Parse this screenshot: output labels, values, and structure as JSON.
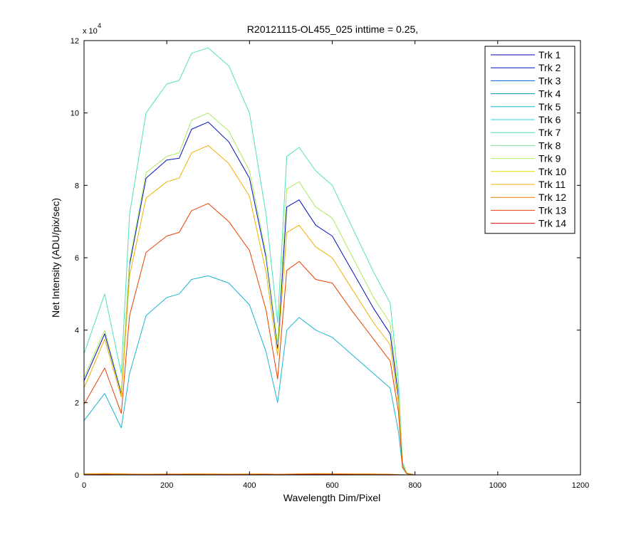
{
  "chart_data": {
    "type": "line",
    "title": "R20121115-OL455_025 inttime = 0.25,",
    "xlabel": "Wavelength Dim/Pixel",
    "ylabel": "Net Intensity (ADU/pix/sec)",
    "y_multiplier_label": "x 10",
    "y_multiplier_exponent": "4",
    "xlim": [
      0,
      1200
    ],
    "ylim": [
      0,
      120000
    ],
    "xticks": [
      0,
      200,
      400,
      600,
      800,
      1000,
      1200
    ],
    "yticks": [
      0,
      20000,
      40000,
      60000,
      80000,
      100000,
      120000
    ],
    "xtick_labels": [
      "0",
      "200",
      "400",
      "600",
      "800",
      "1000",
      "1200"
    ],
    "ytick_labels": [
      "0",
      "2",
      "4",
      "6",
      "8",
      "10",
      "12"
    ],
    "legend_position": "top-right",
    "grid": false,
    "x": [
      0,
      50,
      90,
      110,
      150,
      200,
      230,
      260,
      300,
      350,
      400,
      440,
      468,
      490,
      520,
      560,
      600,
      650,
      700,
      740,
      760,
      770,
      780,
      800,
      1023
    ],
    "series": [
      {
        "name": "Trk 1",
        "color": "#0000AA",
        "values": [
          100,
          150,
          120,
          90,
          60,
          110,
          90,
          130,
          110,
          80,
          100,
          120,
          70,
          100,
          160,
          200,
          180,
          140,
          120,
          80,
          40,
          10,
          0,
          0,
          0
        ]
      },
      {
        "name": "Trk 2",
        "color": "#0010C0",
        "values": [
          26000,
          39000,
          22500,
          58000,
          82000,
          87000,
          87500,
          95500,
          97500,
          92000,
          82000,
          60000,
          35000,
          74000,
          76000,
          69000,
          66000,
          56000,
          46000,
          39000,
          22000,
          3000,
          500,
          0,
          0
        ]
      },
      {
        "name": "Trk 3",
        "color": "#0060D0",
        "values": [
          150,
          200,
          160,
          120,
          100,
          150,
          130,
          160,
          150,
          120,
          140,
          150,
          100,
          130,
          190,
          230,
          210,
          170,
          140,
          100,
          50,
          15,
          0,
          0,
          0
        ]
      },
      {
        "name": "Trk 4",
        "color": "#0090B0",
        "values": [
          120,
          180,
          140,
          100,
          80,
          130,
          110,
          140,
          120,
          100,
          120,
          130,
          90,
          110,
          170,
          210,
          190,
          150,
          130,
          90,
          45,
          12,
          0,
          0,
          0
        ]
      },
      {
        "name": "Trk 5",
        "color": "#1AB5D5",
        "values": [
          15000,
          22500,
          13000,
          28000,
          44000,
          49000,
          50000,
          54000,
          55000,
          53000,
          47000,
          34000,
          20000,
          40000,
          43500,
          40000,
          38000,
          33000,
          28000,
          24000,
          12000,
          2000,
          300,
          0,
          0
        ]
      },
      {
        "name": "Trk 6",
        "color": "#30D0D0",
        "values": [
          200,
          260,
          220,
          160,
          130,
          180,
          160,
          200,
          190,
          150,
          170,
          180,
          120,
          160,
          220,
          260,
          240,
          200,
          170,
          120,
          60,
          18,
          0,
          0,
          0
        ]
      },
      {
        "name": "Trk 7",
        "color": "#50E0C0",
        "values": [
          33500,
          50000,
          28000,
          72000,
          100000,
          108000,
          109000,
          116500,
          118000,
          113000,
          100000,
          72000,
          42000,
          88000,
          90500,
          84000,
          80000,
          68000,
          56000,
          47500,
          26000,
          3500,
          600,
          0,
          0
        ]
      },
      {
        "name": "Trk 8",
        "color": "#80E890",
        "values": [
          180,
          240,
          200,
          150,
          120,
          170,
          150,
          190,
          170,
          140,
          160,
          170,
          110,
          150,
          210,
          250,
          230,
          190,
          160,
          110,
          55,
          15,
          0,
          0,
          0
        ]
      },
      {
        "name": "Trk 9",
        "color": "#B0E860",
        "values": [
          27000,
          40000,
          23000,
          59000,
          83500,
          88000,
          89000,
          98000,
          100000,
          95000,
          84000,
          61000,
          36000,
          79000,
          81000,
          74000,
          71000,
          60000,
          49000,
          42000,
          23000,
          3000,
          500,
          0,
          0
        ]
      },
      {
        "name": "Trk 10",
        "color": "#E0E000",
        "values": [
          250,
          320,
          270,
          200,
          170,
          230,
          200,
          250,
          240,
          190,
          210,
          230,
          160,
          200,
          280,
          330,
          300,
          250,
          210,
          150,
          75,
          20,
          0,
          0,
          0
        ]
      },
      {
        "name": "Trk 11",
        "color": "#F0B000",
        "values": [
          24000,
          37500,
          21500,
          55000,
          76500,
          81000,
          82000,
          89000,
          91000,
          86000,
          77000,
          56000,
          33000,
          67000,
          69000,
          63000,
          60000,
          51000,
          42000,
          36000,
          20000,
          2500,
          400,
          0,
          0
        ]
      },
      {
        "name": "Trk 12",
        "color": "#F08000",
        "values": [
          300,
          380,
          320,
          240,
          200,
          260,
          230,
          280,
          260,
          220,
          240,
          260,
          180,
          220,
          300,
          350,
          330,
          280,
          240,
          170,
          85,
          22,
          0,
          0,
          0
        ]
      },
      {
        "name": "Trk 13",
        "color": "#E84000",
        "values": [
          19500,
          29500,
          17000,
          44000,
          61500,
          66000,
          67000,
          73000,
          75000,
          70000,
          62000,
          45500,
          26500,
          56500,
          59000,
          54000,
          53000,
          45000,
          37500,
          31500,
          17500,
          2200,
          300,
          0,
          0
        ]
      },
      {
        "name": "Trk 14",
        "color": "#D01000",
        "values": [
          50,
          90,
          60,
          40,
          30,
          70,
          50,
          80,
          60,
          40,
          60,
          70,
          30,
          60,
          100,
          130,
          110,
          80,
          60,
          40,
          20,
          5,
          0,
          0,
          0
        ]
      }
    ]
  }
}
